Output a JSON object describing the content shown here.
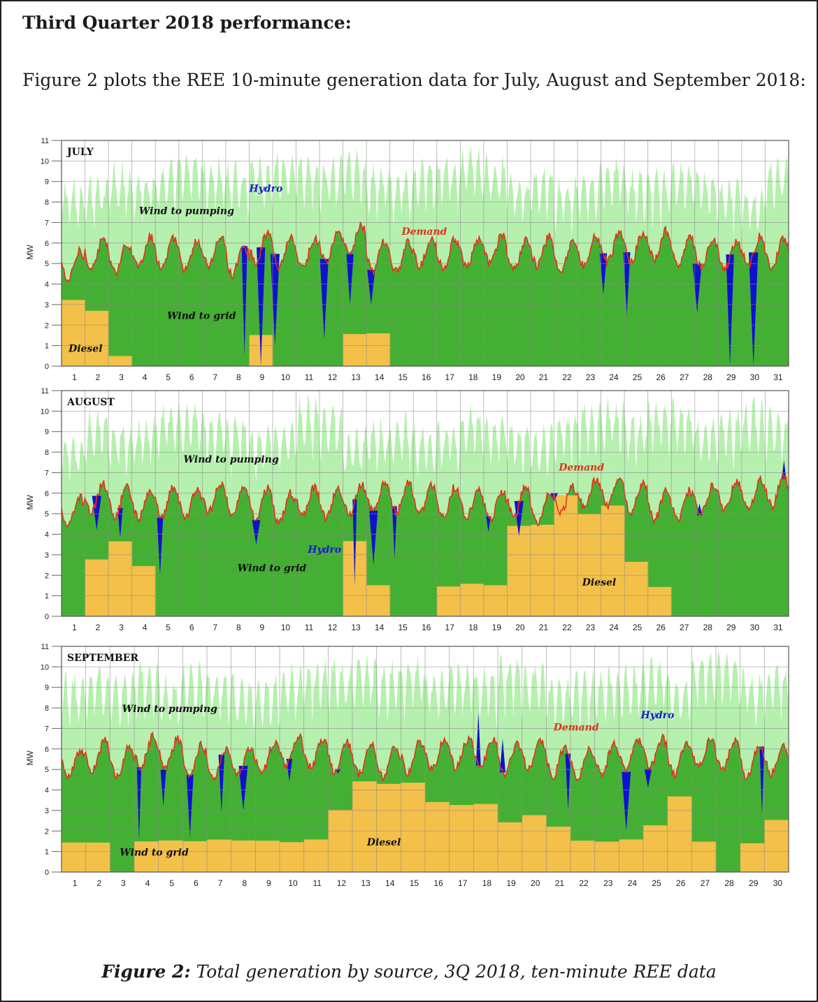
{
  "heading": "Third Quarter 2018 performance:",
  "intro": "Figure 2 plots the REE 10-minute generation data for July, August and September 2018:",
  "caption": {
    "label": "Figure 2:",
    "text": "Total generation by source, 3Q 2018, ten-minute REE data"
  },
  "colors": {
    "wind_to_pumping": "#b6f0ae",
    "wind_to_grid": "#44b033",
    "diesel": "#f3c04a",
    "hydro": "#1010d0",
    "demand": "#e53018",
    "grid": "#8a8a8a"
  },
  "chart_data": [
    {
      "type": "area",
      "panel": "JULY",
      "ylabel": "MW",
      "ylim": [
        0,
        11
      ],
      "yticks": [
        "0",
        "1",
        "2",
        "3",
        "4",
        "5",
        "6",
        "7",
        "8",
        "9",
        "10",
        "11"
      ],
      "xticks": [
        "1",
        "2",
        "3",
        "4",
        "5",
        "6",
        "7",
        "8",
        "9",
        "10",
        "11",
        "12",
        "13",
        "14",
        "15",
        "16",
        "17",
        "18",
        "19",
        "20",
        "21",
        "22",
        "23",
        "24",
        "25",
        "26",
        "27",
        "28",
        "29",
        "30",
        "31"
      ],
      "days": 31,
      "annotations": [
        {
          "text": "Wind to pumping",
          "day": 3.3,
          "mw": 7.4,
          "color": "#111111"
        },
        {
          "text": "Hydro",
          "day": 8.0,
          "mw": 8.5,
          "color": "#1a1ad0"
        },
        {
          "text": "Demand",
          "day": 14.5,
          "mw": 6.4,
          "color": "#e53018"
        },
        {
          "text": "Wind to grid",
          "day": 4.5,
          "mw": 2.3,
          "color": "#111111"
        },
        {
          "text": "Diesel",
          "day": 0.3,
          "mw": 0.7,
          "color": "#111111"
        }
      ],
      "demand_peaks_mw": [
        5.6,
        6.2,
        6.0,
        6.3,
        6.2,
        6.1,
        6.3,
        5.9,
        6.5,
        6.3,
        6.2,
        6.5,
        6.9,
        6.1,
        6.0,
        6.3,
        6.2,
        6.2,
        6.4,
        6.1,
        6.3,
        6.0,
        6.3,
        6.5,
        6.5,
        6.6,
        6.3,
        6.2,
        6.1,
        6.3,
        6.2
      ],
      "pumping_max_mw": [
        8.8,
        9.0,
        9.6,
        9.4,
        9.8,
        10.2,
        9.9,
        9.6,
        9.9,
        10.3,
        10.0,
        9.9,
        10.2,
        9.6,
        9.3,
        9.9,
        10.1,
        10.4,
        10.0,
        9.2,
        9.6,
        9.0,
        9.4,
        10.1,
        9.3,
        9.2,
        9.8,
        9.4,
        9.0,
        8.6,
        9.8
      ],
      "diesel_mw": [
        3.2,
        2.6,
        0.5,
        0,
        0,
        0,
        0,
        0,
        1.5,
        0,
        0,
        0,
        1.5,
        1.5,
        0,
        0,
        0,
        0,
        0,
        0,
        0,
        0,
        0,
        0,
        0,
        0,
        0,
        0,
        0,
        0,
        0
      ],
      "hydro_events": [
        {
          "day": 7.8,
          "to_mw": 0.5
        },
        {
          "day": 8.5,
          "to_mw": 0.0
        },
        {
          "day": 9.1,
          "to_mw": 1.0
        },
        {
          "day": 11.2,
          "to_mw": 1.3
        },
        {
          "day": 12.3,
          "to_mw": 3.0
        },
        {
          "day": 13.2,
          "to_mw": 3.0
        },
        {
          "day": 23.1,
          "to_mw": 3.5
        },
        {
          "day": 24.1,
          "to_mw": 2.5
        },
        {
          "day": 27.1,
          "to_mw": 2.6
        },
        {
          "day": 28.5,
          "to_mw": 0.0
        },
        {
          "day": 29.5,
          "to_mw": 0.0
        }
      ]
    },
    {
      "type": "area",
      "panel": "AUGUST",
      "ylabel": "MW",
      "ylim": [
        0,
        11
      ],
      "yticks": [
        "0",
        "1",
        "2",
        "3",
        "4",
        "5",
        "6",
        "7",
        "8",
        "9",
        "10",
        "11"
      ],
      "xticks": [
        "1",
        "2",
        "3",
        "4",
        "5",
        "6",
        "7",
        "8",
        "9",
        "10",
        "11",
        "12",
        "13",
        "14",
        "15",
        "16",
        "17",
        "18",
        "19",
        "20",
        "21",
        "22",
        "23",
        "24",
        "25",
        "26",
        "27",
        "28",
        "29",
        "30",
        "31"
      ],
      "days": 31,
      "annotations": [
        {
          "text": "Wind to pumping",
          "day": 5.2,
          "mw": 7.5,
          "color": "#111111"
        },
        {
          "text": "Demand",
          "day": 21.2,
          "mw": 7.1,
          "color": "#e53018"
        },
        {
          "text": "Hydro",
          "day": 10.5,
          "mw": 3.1,
          "color": "#1a1ad0"
        },
        {
          "text": "Wind to grid",
          "day": 7.5,
          "mw": 2.2,
          "color": "#111111"
        },
        {
          "text": "Diesel",
          "day": 22.2,
          "mw": 1.5,
          "color": "#111111"
        }
      ],
      "demand_peaks_mw": [
        5.8,
        6.5,
        6.3,
        6.2,
        6.3,
        6.2,
        6.5,
        6.4,
        6.2,
        6.0,
        6.3,
        6.2,
        6.4,
        6.5,
        6.5,
        6.4,
        6.3,
        6.3,
        6.1,
        6.3,
        6.0,
        6.4,
        6.7,
        6.8,
        6.5,
        6.1,
        6.1,
        6.4,
        6.6,
        6.6,
        6.8
      ],
      "pumping_max_mw": [
        8.6,
        9.8,
        9.2,
        9.4,
        10.2,
        10.3,
        9.8,
        9.6,
        9.0,
        9.3,
        10.4,
        10.0,
        8.8,
        9.4,
        9.6,
        9.2,
        9.2,
        10.0,
        9.6,
        9.3,
        9.1,
        9.8,
        10.3,
        10.3,
        9.8,
        10.4,
        10.2,
        9.6,
        9.8,
        10.3,
        9.8
      ],
      "diesel_mw": [
        0,
        2.8,
        3.6,
        2.4,
        0,
        0,
        0,
        0,
        0,
        0,
        0,
        0,
        3.6,
        1.5,
        0,
        0,
        1.5,
        1.5,
        1.5,
        4.5,
        4.5,
        5.9,
        5.0,
        5.3,
        2.7,
        1.5,
        0,
        0,
        0,
        0,
        0
      ],
      "hydro_events": [
        {
          "day": 1.5,
          "to_mw": 4.2
        },
        {
          "day": 2.5,
          "to_mw": 3.8
        },
        {
          "day": 4.2,
          "to_mw": 2.0
        },
        {
          "day": 8.3,
          "to_mw": 3.5
        },
        {
          "day": 12.5,
          "to_mw": 1.5
        },
        {
          "day": 13.3,
          "to_mw": 2.5
        },
        {
          "day": 14.2,
          "to_mw": 2.8
        },
        {
          "day": 18.2,
          "to_mw": 4.1
        },
        {
          "day": 19.5,
          "to_mw": 3.9
        },
        {
          "day": 21.0,
          "to_mw": 5.6
        },
        {
          "day": 27.2,
          "to_mw": 5.5
        },
        {
          "day": 30.8,
          "to_mw": 7.6
        }
      ]
    },
    {
      "type": "area",
      "panel": "SEPTEMBER",
      "ylabel": "MW",
      "ylim": [
        0,
        11
      ],
      "yticks": [
        "0",
        "1",
        "2",
        "3",
        "4",
        "5",
        "6",
        "7",
        "8",
        "9",
        "10",
        "11"
      ],
      "xticks": [
        "1",
        "2",
        "3",
        "4",
        "5",
        "6",
        "7",
        "8",
        "9",
        "10",
        "11",
        "12",
        "13",
        "14",
        "15",
        "16",
        "17",
        "18",
        "19",
        "20",
        "21",
        "22",
        "23",
        "24",
        "25",
        "26",
        "27",
        "28",
        "29",
        "30"
      ],
      "days": 30,
      "annotations": [
        {
          "text": "Wind to pumping",
          "day": 2.5,
          "mw": 7.8,
          "color": "#111111"
        },
        {
          "text": "Demand",
          "day": 20.3,
          "mw": 6.9,
          "color": "#e53018"
        },
        {
          "text": "Hydro",
          "day": 23.9,
          "mw": 7.5,
          "color": "#1a1ad0"
        },
        {
          "text": "Diesel",
          "day": 12.6,
          "mw": 1.3,
          "color": "#111111"
        },
        {
          "text": "Wind to grid",
          "day": 2.4,
          "mw": 0.8,
          "color": "#111111"
        }
      ],
      "demand_peaks_mw": [
        6.0,
        6.4,
        6.1,
        6.6,
        6.5,
        6.2,
        6.0,
        6.1,
        6.3,
        6.6,
        6.5,
        6.3,
        6.2,
        6.1,
        6.3,
        6.4,
        6.5,
        6.5,
        6.2,
        6.4,
        6.1,
        6.0,
        6.2,
        6.4,
        6.5,
        6.2,
        6.5,
        6.4,
        6.1,
        6.2
      ],
      "pumping_max_mw": [
        9.4,
        9.8,
        9.4,
        10.1,
        9.3,
        9.9,
        9.8,
        9.3,
        9.4,
        9.8,
        10.0,
        10.1,
        10.3,
        10.0,
        10.2,
        9.6,
        10.0,
        9.8,
        10.3,
        9.9,
        9.4,
        9.6,
        9.7,
        9.8,
        10.2,
        9.5,
        10.5,
        10.6,
        9.6,
        9.9
      ],
      "diesel_mw": [
        1.5,
        1.5,
        0,
        1.5,
        1.5,
        1.5,
        1.5,
        1.5,
        1.5,
        1.5,
        1.5,
        3.0,
        4.5,
        4.2,
        4.3,
        3.4,
        3.3,
        3.3,
        2.4,
        2.8,
        2.3,
        1.5,
        1.5,
        1.5,
        2.2,
        3.7,
        1.5,
        0,
        1.5,
        2.6
      ],
      "hydro_events": [
        {
          "day": 3.2,
          "to_mw": 1.5
        },
        {
          "day": 4.2,
          "to_mw": 3.2
        },
        {
          "day": 5.3,
          "to_mw": 1.7
        },
        {
          "day": 6.6,
          "to_mw": 2.9
        },
        {
          "day": 7.5,
          "to_mw": 3.0
        },
        {
          "day": 9.4,
          "to_mw": 4.4
        },
        {
          "day": 11.4,
          "to_mw": 4.8
        },
        {
          "day": 17.2,
          "to_mw": 7.8
        },
        {
          "day": 18.2,
          "to_mw": 6.5
        },
        {
          "day": 20.9,
          "to_mw": 3.0
        },
        {
          "day": 23.3,
          "to_mw": 2.0
        },
        {
          "day": 24.2,
          "to_mw": 4.1
        },
        {
          "day": 28.9,
          "to_mw": 2.8
        }
      ]
    }
  ]
}
